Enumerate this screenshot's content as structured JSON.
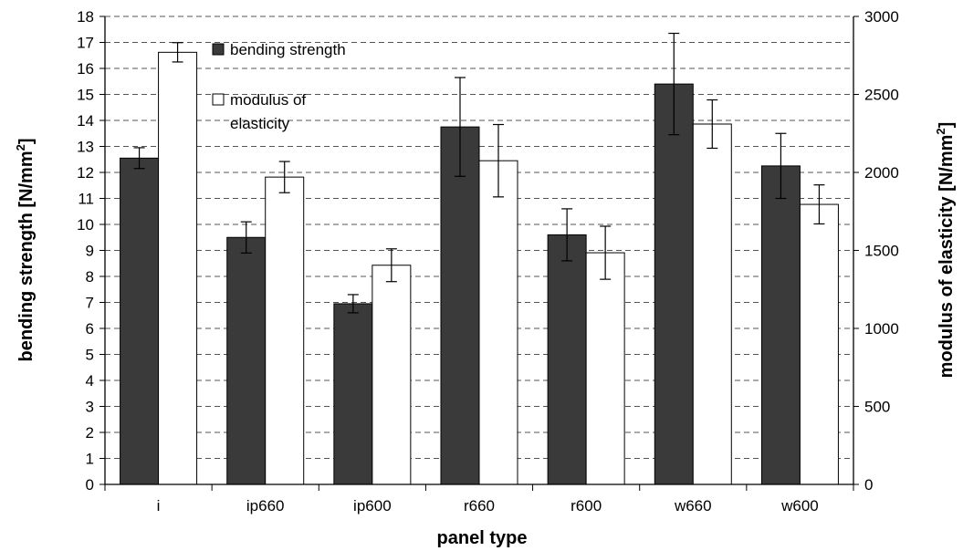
{
  "chart_data": {
    "type": "bar",
    "categories": [
      "i",
      "ip660",
      "ip600",
      "r660",
      "r600",
      "w660",
      "w600"
    ],
    "xlabel": "panel type",
    "ylabel": "bending strength [N/mm",
    "ylabel_sup": "2",
    "ylabel_end": "]",
    "y2label": "modulus of elasticity [N/mm",
    "y2label_sup": "2",
    "y2label_end": "]",
    "ylim": [
      0,
      18
    ],
    "y2lim": [
      0,
      3000
    ],
    "yticks": [
      "0",
      "1",
      "2",
      "3",
      "4",
      "5",
      "6",
      "7",
      "8",
      "9",
      "10",
      "11",
      "12",
      "13",
      "14",
      "15",
      "16",
      "17",
      "18"
    ],
    "y2ticks": [
      "0",
      "500",
      "1000",
      "1500",
      "2000",
      "2500",
      "3000"
    ],
    "grid": "horizontal dashed",
    "legend_position": "top-left",
    "series": [
      {
        "name": "bending strength",
        "axis": "left",
        "color": "#3a3a3a",
        "values": [
          12.55,
          9.5,
          6.95,
          13.75,
          9.6,
          15.4,
          12.25
        ],
        "error": [
          0.4,
          0.6,
          0.35,
          1.9,
          1.0,
          1.95,
          1.25
        ]
      },
      {
        "name": "modulus of elasticity",
        "name_lines": [
          "modulus of",
          "elasticity"
        ],
        "axis": "right",
        "color": "#ffffff",
        "values": [
          2770,
          1970,
          1405,
          2075,
          1485,
          2310,
          1795
        ],
        "error": [
          62,
          100,
          105,
          232,
          170,
          155,
          125
        ]
      }
    ]
  }
}
